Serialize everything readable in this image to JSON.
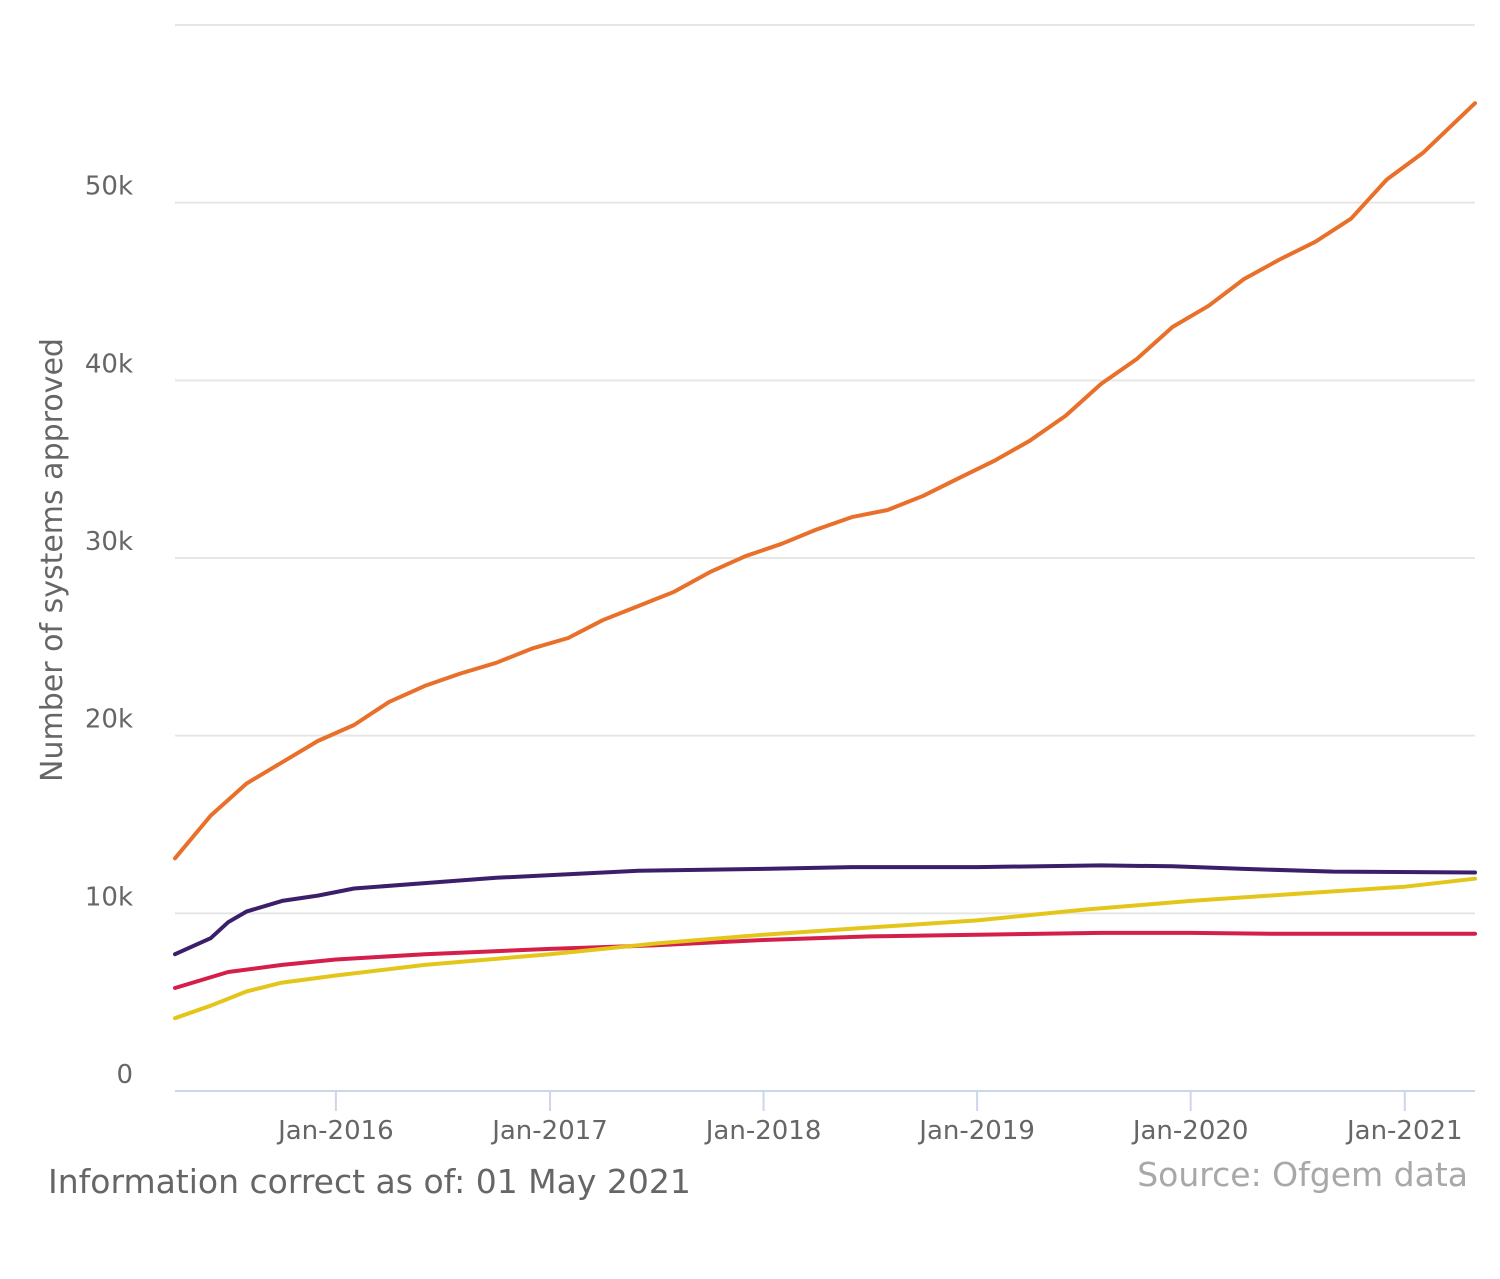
{
  "footer": {
    "info": "Information correct as of: 01 May 2021",
    "source": "Source: Ofgem data"
  },
  "colors": {
    "grid": "#e6e6e6",
    "axis_line": "#ccd6eb",
    "tick_text": "#666666",
    "ylabel_text": "#666666"
  },
  "chart_data": {
    "type": "line",
    "title": "",
    "xlabel": "",
    "ylabel": "Number of systems approved",
    "xlim": [
      "2015-04-01",
      "2021-05-01"
    ],
    "ylim": [
      0,
      60000
    ],
    "yticks": [
      {
        "value": 0,
        "label": "0"
      },
      {
        "value": 10000,
        "label": "10k"
      },
      {
        "value": 20000,
        "label": "20k"
      },
      {
        "value": 30000,
        "label": "30k"
      },
      {
        "value": 40000,
        "label": "40k"
      },
      {
        "value": 50000,
        "label": "50k"
      }
    ],
    "xticks": [
      {
        "value": "2016-01-01",
        "label": "Jan-2016"
      },
      {
        "value": "2017-01-01",
        "label": "Jan-2017"
      },
      {
        "value": "2018-01-01",
        "label": "Jan-2018"
      },
      {
        "value": "2019-01-01",
        "label": "Jan-2019"
      },
      {
        "value": "2020-01-01",
        "label": "Jan-2020"
      },
      {
        "value": "2021-01-01",
        "label": "Jan-2021"
      }
    ],
    "grid": true,
    "legend": "none",
    "series": [
      {
        "color": "#e8702a",
        "points": [
          [
            "2015-04-01",
            13100
          ],
          [
            "2015-06-01",
            15500
          ],
          [
            "2015-08-01",
            17300
          ],
          [
            "2015-10-01",
            18500
          ],
          [
            "2015-12-01",
            19700
          ],
          [
            "2016-02-01",
            20600
          ],
          [
            "2016-04-01",
            21900
          ],
          [
            "2016-06-01",
            22800
          ],
          [
            "2016-08-01",
            23500
          ],
          [
            "2016-10-01",
            24100
          ],
          [
            "2016-12-01",
            24900
          ],
          [
            "2017-02-01",
            25500
          ],
          [
            "2017-04-01",
            26500
          ],
          [
            "2017-06-01",
            27300
          ],
          [
            "2017-08-01",
            28100
          ],
          [
            "2017-10-01",
            29200
          ],
          [
            "2017-12-01",
            30100
          ],
          [
            "2018-02-01",
            30800
          ],
          [
            "2018-04-01",
            31600
          ],
          [
            "2018-06-01",
            32300
          ],
          [
            "2018-08-01",
            32700
          ],
          [
            "2018-10-01",
            33500
          ],
          [
            "2018-12-01",
            34500
          ],
          [
            "2019-02-01",
            35500
          ],
          [
            "2019-04-01",
            36600
          ],
          [
            "2019-06-01",
            38000
          ],
          [
            "2019-08-01",
            39800
          ],
          [
            "2019-10-01",
            41200
          ],
          [
            "2019-12-01",
            43000
          ],
          [
            "2020-02-01",
            44200
          ],
          [
            "2020-04-01",
            45700
          ],
          [
            "2020-06-01",
            46800
          ],
          [
            "2020-08-01",
            47800
          ],
          [
            "2020-10-01",
            49100
          ],
          [
            "2020-12-01",
            51300
          ],
          [
            "2021-02-01",
            52800
          ],
          [
            "2021-05-01",
            55600
          ]
        ]
      },
      {
        "color": "#3b1f6b",
        "points": [
          [
            "2015-04-01",
            7700
          ],
          [
            "2015-06-01",
            8600
          ],
          [
            "2015-07-01",
            9500
          ],
          [
            "2015-08-01",
            10100
          ],
          [
            "2015-10-01",
            10700
          ],
          [
            "2015-12-01",
            11000
          ],
          [
            "2016-02-01",
            11400
          ],
          [
            "2016-06-01",
            11700
          ],
          [
            "2016-10-01",
            12000
          ],
          [
            "2017-02-01",
            12200
          ],
          [
            "2017-06-01",
            12400
          ],
          [
            "2018-01-01",
            12500
          ],
          [
            "2018-06-01",
            12600
          ],
          [
            "2019-01-01",
            12600
          ],
          [
            "2019-08-01",
            12700
          ],
          [
            "2019-12-01",
            12650
          ],
          [
            "2020-04-01",
            12500
          ],
          [
            "2020-09-01",
            12350
          ],
          [
            "2021-05-01",
            12300
          ]
        ]
      },
      {
        "color": "#d41f4a",
        "points": [
          [
            "2015-04-01",
            5800
          ],
          [
            "2015-07-01",
            6700
          ],
          [
            "2015-10-01",
            7100
          ],
          [
            "2016-01-01",
            7400
          ],
          [
            "2016-06-01",
            7700
          ],
          [
            "2017-01-01",
            8000
          ],
          [
            "2017-07-01",
            8200
          ],
          [
            "2018-01-01",
            8500
          ],
          [
            "2018-07-01",
            8700
          ],
          [
            "2019-01-01",
            8800
          ],
          [
            "2019-08-01",
            8900
          ],
          [
            "2020-01-01",
            8900
          ],
          [
            "2020-06-01",
            8850
          ],
          [
            "2021-05-01",
            8850
          ]
        ]
      },
      {
        "color": "#e4c51a",
        "points": [
          [
            "2015-04-01",
            4100
          ],
          [
            "2015-06-01",
            4800
          ],
          [
            "2015-08-01",
            5600
          ],
          [
            "2015-10-01",
            6100
          ],
          [
            "2016-01-01",
            6500
          ],
          [
            "2016-06-01",
            7100
          ],
          [
            "2017-01-01",
            7700
          ],
          [
            "2017-07-01",
            8300
          ],
          [
            "2018-01-01",
            8800
          ],
          [
            "2018-07-01",
            9200
          ],
          [
            "2019-01-01",
            9600
          ],
          [
            "2019-07-01",
            10200
          ],
          [
            "2020-01-01",
            10700
          ],
          [
            "2020-07-01",
            11100
          ],
          [
            "2021-01-01",
            11500
          ],
          [
            "2021-05-01",
            11950
          ]
        ]
      }
    ]
  }
}
